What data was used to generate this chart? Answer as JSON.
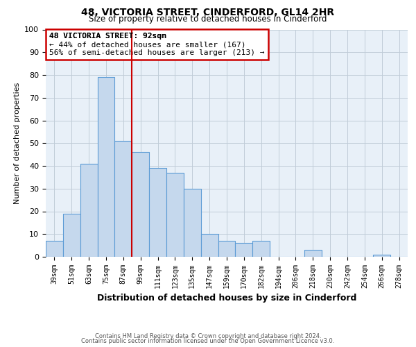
{
  "title": "48, VICTORIA STREET, CINDERFORD, GL14 2HR",
  "subtitle": "Size of property relative to detached houses in Cinderford",
  "xlabel": "Distribution of detached houses by size in Cinderford",
  "ylabel": "Number of detached properties",
  "bins": [
    "39sqm",
    "51sqm",
    "63sqm",
    "75sqm",
    "87sqm",
    "99sqm",
    "111sqm",
    "123sqm",
    "135sqm",
    "147sqm",
    "159sqm",
    "170sqm",
    "182sqm",
    "194sqm",
    "206sqm",
    "218sqm",
    "230sqm",
    "242sqm",
    "254sqm",
    "266sqm",
    "278sqm"
  ],
  "values": [
    7,
    19,
    41,
    79,
    51,
    46,
    39,
    37,
    30,
    10,
    7,
    6,
    7,
    0,
    0,
    3,
    0,
    0,
    0,
    1,
    0
  ],
  "bar_color": "#c5d8ed",
  "bar_edge_color": "#5b9bd5",
  "vline_x": 4.5,
  "vline_color": "#cc0000",
  "annotation_title": "48 VICTORIA STREET: 92sqm",
  "annotation_line1": "← 44% of detached houses are smaller (167)",
  "annotation_line2": "56% of semi-detached houses are larger (213) →",
  "annotation_box_color": "#ffffff",
  "annotation_box_edge": "#cc0000",
  "ylim": [
    0,
    100
  ],
  "yticks": [
    0,
    10,
    20,
    30,
    40,
    50,
    60,
    70,
    80,
    90,
    100
  ],
  "footnote1": "Contains HM Land Registry data © Crown copyright and database right 2024.",
  "footnote2": "Contains public sector information licensed under the Open Government Licence v3.0.",
  "bg_color": "#ffffff",
  "plot_bg_color": "#e8f0f8",
  "grid_color": "#c0ccd8"
}
